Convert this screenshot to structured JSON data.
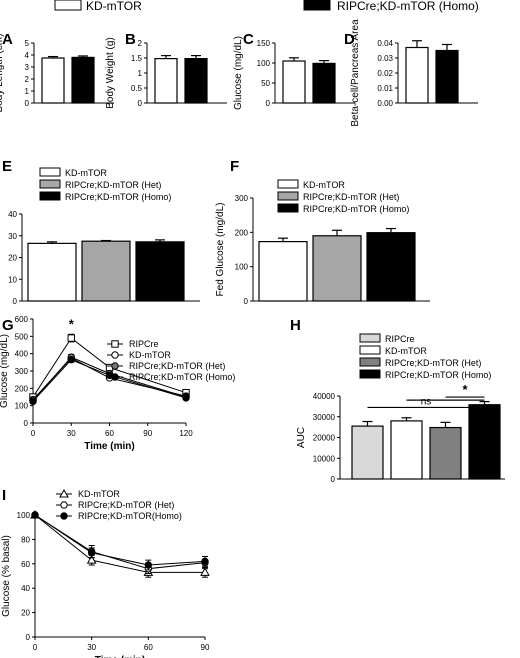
{
  "top_legend": [
    {
      "label": "KD-mTOR",
      "color": "#ffffff"
    },
    {
      "label": "RIPCre;KD-mTOR (Homo)",
      "color": "#000000"
    }
  ],
  "chart_data": [
    {
      "panel": "A",
      "type": "bar",
      "ylabel": "Body Length (cm)",
      "ylim": [
        0,
        5
      ],
      "yticks": [
        0,
        1,
        2,
        3,
        4,
        5
      ],
      "categories": [
        "KD-mTOR",
        "RIPCre;KD-mTOR (Homo)"
      ],
      "values": [
        3.75,
        3.8
      ],
      "errors": [
        0.12,
        0.12
      ],
      "colors": [
        "#ffffff",
        "#000000"
      ]
    },
    {
      "panel": "B",
      "type": "bar",
      "ylabel": "Body Weight (g)",
      "ylim": [
        0,
        2.0
      ],
      "yticks": [
        0,
        0.5,
        1.0,
        1.5,
        2.0
      ],
      "categories": [
        "KD-mTOR",
        "RIPCre;KD-mTOR (Homo)"
      ],
      "values": [
        1.48,
        1.48
      ],
      "errors": [
        0.1,
        0.1
      ],
      "colors": [
        "#ffffff",
        "#000000"
      ]
    },
    {
      "panel": "C",
      "type": "bar",
      "ylabel": "Glucose (mg/dL)",
      "ylim": [
        0,
        150
      ],
      "yticks": [
        0,
        50,
        100,
        150
      ],
      "categories": [
        "KD-mTOR",
        "RIPCre;KD-mTOR (Homo)"
      ],
      "values": [
        105,
        99
      ],
      "errors": [
        8,
        7
      ],
      "colors": [
        "#ffffff",
        "#000000"
      ]
    },
    {
      "panel": "D",
      "type": "bar",
      "ylabel": "Beta-cell/Pancreas Area",
      "ylim": [
        0,
        0.04
      ],
      "yticks": [
        0,
        0.01,
        0.02,
        0.03,
        0.04
      ],
      "ytick_labels": [
        "0.00",
        "0.01",
        "0.02",
        "0.03",
        "0.04"
      ],
      "categories": [
        "KD-mTOR",
        "RIPCre;KD-mTOR (Homo)"
      ],
      "values": [
        0.037,
        0.035
      ],
      "errors": [
        0.0045,
        0.004
      ],
      "colors": [
        "#ffffff",
        "#000000"
      ]
    },
    {
      "panel": "E",
      "type": "bar",
      "ylabel": "Body Weight (g)",
      "ylim": [
        0,
        40
      ],
      "yticks": [
        0,
        10,
        20,
        30,
        40
      ],
      "categories": [
        "KD-mTOR",
        "RIPCre;KD-mTOR (Het)",
        "RIPCre;KD-mTOR (Homo)"
      ],
      "values": [
        26.5,
        27.5,
        27.2
      ],
      "errors": [
        0.7,
        0.3,
        0.9
      ],
      "colors": [
        "#ffffff",
        "#a6a6a6",
        "#000000"
      ],
      "legend": [
        "KD-mTOR",
        "RIPCre;KD-mTOR (Het)",
        "RIPCre;KD-mTOR (Homo)"
      ]
    },
    {
      "panel": "F",
      "type": "bar",
      "ylabel": "Fed Glucose (mg/dL)",
      "ylim": [
        0,
        300
      ],
      "yticks": [
        0,
        100,
        200,
        300
      ],
      "categories": [
        "KD-mTOR",
        "RIPCre;KD-mTOR (Het)",
        "RIPCre;KD-mTOR (Homo)"
      ],
      "values": [
        173,
        190,
        199
      ],
      "errors": [
        10,
        16,
        12
      ],
      "colors": [
        "#ffffff",
        "#a6a6a6",
        "#000000"
      ],
      "legend": [
        "KD-mTOR",
        "RIPCre;KD-mTOR (Het)",
        "RIPCre;KD-mTOR (Homo)"
      ]
    },
    {
      "panel": "G",
      "type": "line",
      "xlabel": "Time (min)",
      "ylabel": "Glucose (mg/dL)",
      "x": [
        0,
        30,
        60,
        120
      ],
      "xlim": [
        0,
        120
      ],
      "xticks": [
        0,
        30,
        60,
        90,
        120
      ],
      "ylim": [
        0,
        600
      ],
      "yticks": [
        0,
        100,
        200,
        300,
        400,
        500,
        600
      ],
      "annotation": "*",
      "annotation_x": 30,
      "annotation_y": 545,
      "series": [
        {
          "name": "RIPCre",
          "marker": "square-open",
          "values": [
            150,
            490,
            320,
            175
          ],
          "errors": [
            10,
            22,
            14,
            10
          ]
        },
        {
          "name": "KD-mTOR",
          "marker": "circle-open",
          "values": [
            135,
            375,
            260,
            155
          ],
          "errors": [
            10,
            15,
            12,
            10
          ]
        },
        {
          "name": "RIPCre;KD-mTOR (Het)",
          "marker": "circle-half",
          "values": [
            128,
            380,
            285,
            150
          ],
          "errors": [
            10,
            15,
            12,
            10
          ]
        },
        {
          "name": "RIPCre;KD-mTOR (Homo)",
          "marker": "circle-filled",
          "values": [
            125,
            365,
            275,
            145
          ],
          "errors": [
            10,
            15,
            12,
            10
          ]
        }
      ]
    },
    {
      "panel": "H",
      "type": "bar",
      "ylabel": "AUC",
      "ylim": [
        0,
        40000
      ],
      "yticks": [
        0,
        10000,
        20000,
        30000,
        40000
      ],
      "categories": [
        "RIPCre",
        "KD-mTOR",
        "RIPCre;KD-mTOR (Het)",
        "RIPCre;KD-mTOR (Homo)"
      ],
      "values": [
        25500,
        28000,
        24800,
        35800
      ],
      "errors": [
        2200,
        1500,
        2500,
        1500
      ],
      "colors": [
        "#d9d9d9",
        "#ffffff",
        "#808080",
        "#000000"
      ],
      "legend": [
        "RIPCre",
        "KD-mTOR",
        "RIPCre;KD-mTOR (Het)",
        "RIPCre;KD-mTOR (Homo)"
      ],
      "significance": [
        {
          "from": 2,
          "to": 3,
          "label": "*",
          "y": 39500
        },
        {
          "from": 1,
          "to": 3,
          "label": "",
          "y": 38000
        },
        {
          "from": 0,
          "to": 3,
          "label": "ns",
          "y": 34500
        }
      ]
    },
    {
      "panel": "I",
      "type": "line",
      "xlabel": "Time (min)",
      "ylabel": "Glucose (% basal)",
      "x": [
        0,
        30,
        60,
        90
      ],
      "xlim": [
        0,
        90
      ],
      "xticks": [
        0,
        30,
        60,
        90
      ],
      "ylim": [
        0,
        100
      ],
      "yticks": [
        0,
        20,
        40,
        60,
        80,
        100
      ],
      "series": [
        {
          "name": "KD-mTOR",
          "marker": "triangle-open",
          "values": [
            100,
            63,
            53,
            53
          ],
          "errors": [
            0,
            4,
            4,
            4
          ]
        },
        {
          "name": "RIPCre;KD-mTOR (Het)",
          "marker": "circle-open",
          "values": [
            100,
            70,
            56,
            61
          ],
          "errors": [
            0,
            5,
            4,
            5
          ]
        },
        {
          "name": "RIPCre;KD-mTOR(Homo)",
          "marker": "circle-filled",
          "values": [
            100,
            69,
            59,
            62
          ],
          "errors": [
            0,
            4,
            4,
            4
          ]
        }
      ]
    }
  ]
}
